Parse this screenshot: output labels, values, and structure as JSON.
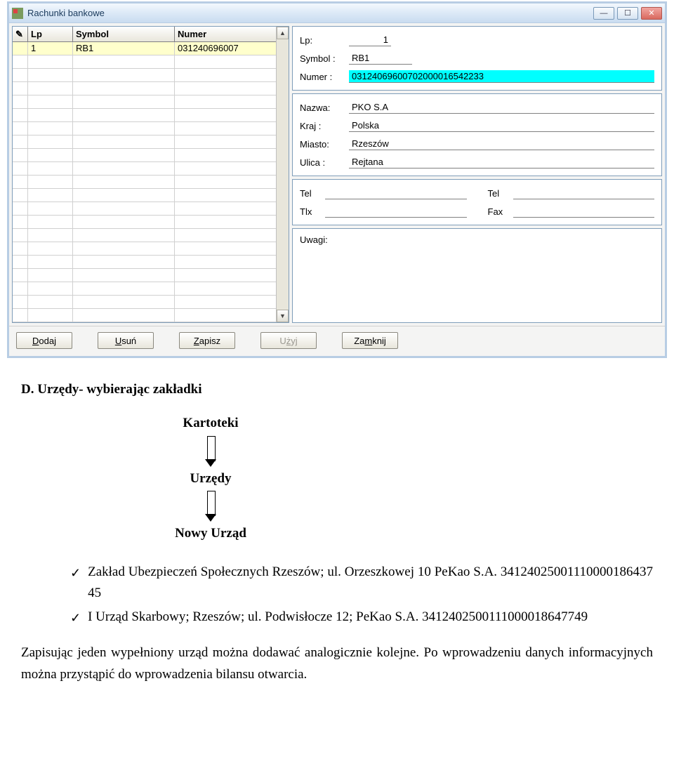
{
  "window": {
    "title": "Rachunki bankowe"
  },
  "table": {
    "headers": {
      "edit_icon": "✎",
      "lp": "Lp",
      "symbol": "Symbol",
      "numer": "Numer"
    },
    "rows": [
      {
        "lp": "1",
        "symbol": "RB1",
        "numer": "031240696007"
      }
    ],
    "empty_row_count": 20
  },
  "details": {
    "lp_label": "Lp:",
    "lp_value": "1",
    "symbol_label": "Symbol :",
    "symbol_value": "RB1",
    "numer_label": "Numer :",
    "numer_value": "03124069600702000016542233",
    "nazwa_label": "Nazwa:",
    "nazwa_value": "PKO S.A",
    "kraj_label": "Kraj   :",
    "kraj_value": "Polska",
    "miasto_label": "Miasto:",
    "miasto_value": "Rzeszów",
    "ulica_label": "Ulica  :",
    "ulica_value": "Rejtana",
    "tel1_label": "Tel",
    "tel1_value": "",
    "tel2_label": "Tel",
    "tel2_value": "",
    "tlx_label": "Tlx",
    "tlx_value": "",
    "fax_label": "Fax",
    "fax_value": "",
    "uwagi_label": "Uwagi:"
  },
  "buttons": {
    "dodaj_pre": "",
    "dodaj_u": "D",
    "dodaj_post": "odaj",
    "usun_pre": "",
    "usun_u": "U",
    "usun_post": "suń",
    "zapisz_pre": "",
    "zapisz_u": "Z",
    "zapisz_post": "apisz",
    "uzyj_pre": "U",
    "uzyj_u": "ż",
    "uzyj_post": "yj",
    "zamknij_pre": "Za",
    "zamknij_u": "m",
    "zamknij_post": "knij"
  },
  "doc": {
    "heading": "D. Urzędy- wybierając zakładki",
    "flow1": "Kartoteki",
    "flow2": "Urzędy",
    "flow3": "Nowy Urząd",
    "bullet1": "Zakład Ubezpieczeń Społecznych Rzeszów; ul. Orzeszkowej 10  PeKao S.A. 34124025001110000186437​45",
    "bullet2": "I Urząd Skarbowy; Rzeszów; ul. Podwisłocze 12; PeKao S.A. 34124025001110000186477​49",
    "paragraph": "Zapisując jeden wypełniony urząd można dodawać analogicznie kolejne. Po wprowadzeniu danych informacyjnych można przystąpić do wprowadzenia bilansu otwarcia."
  },
  "colors": {
    "highlight_bg": "#00ffff",
    "selected_row_bg": "#ffffcc",
    "border": "#7f9db9",
    "frame": "#b8cde4"
  }
}
